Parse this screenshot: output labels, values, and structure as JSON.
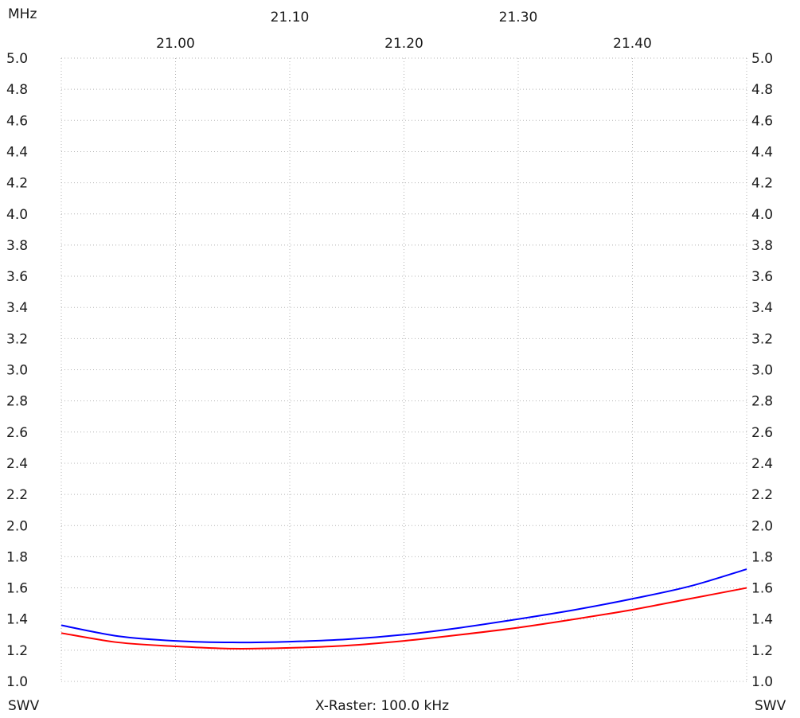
{
  "chart_data": {
    "type": "line",
    "unit_label": "MHz",
    "y_axis_label_left": "SWV",
    "y_axis_label_right": "SWV",
    "footer": "X-Raster: 100.0 kHz",
    "x_ticks_top_row": [
      "21.10",
      "21.30"
    ],
    "x_ticks_bottom_row": [
      "21.00",
      "21.20",
      "21.40"
    ],
    "y_ticks": [
      "5.0",
      "4.8",
      "4.6",
      "4.4",
      "4.2",
      "4.0",
      "3.8",
      "3.6",
      "3.4",
      "3.2",
      "3.0",
      "2.8",
      "2.6",
      "2.4",
      "2.2",
      "2.0",
      "1.8",
      "1.6",
      "1.4",
      "1.2",
      "1.0"
    ],
    "xlim": [
      20.9,
      21.5
    ],
    "ylim": [
      1.0,
      5.0
    ],
    "grid": true,
    "series": [
      {
        "color": "#0000ff",
        "x": [
          20.9,
          20.95,
          21.0,
          21.05,
          21.1,
          21.15,
          21.2,
          21.25,
          21.3,
          21.35,
          21.4,
          21.45,
          21.5
        ],
        "y": [
          1.36,
          1.29,
          1.26,
          1.25,
          1.255,
          1.27,
          1.3,
          1.345,
          1.4,
          1.46,
          1.53,
          1.61,
          1.72
        ]
      },
      {
        "color": "#ff0000",
        "x": [
          20.9,
          20.95,
          21.0,
          21.05,
          21.1,
          21.15,
          21.2,
          21.25,
          21.3,
          21.35,
          21.4,
          21.45,
          21.5
        ],
        "y": [
          1.31,
          1.25,
          1.225,
          1.21,
          1.215,
          1.23,
          1.26,
          1.3,
          1.345,
          1.4,
          1.46,
          1.53,
          1.6
        ]
      }
    ]
  }
}
